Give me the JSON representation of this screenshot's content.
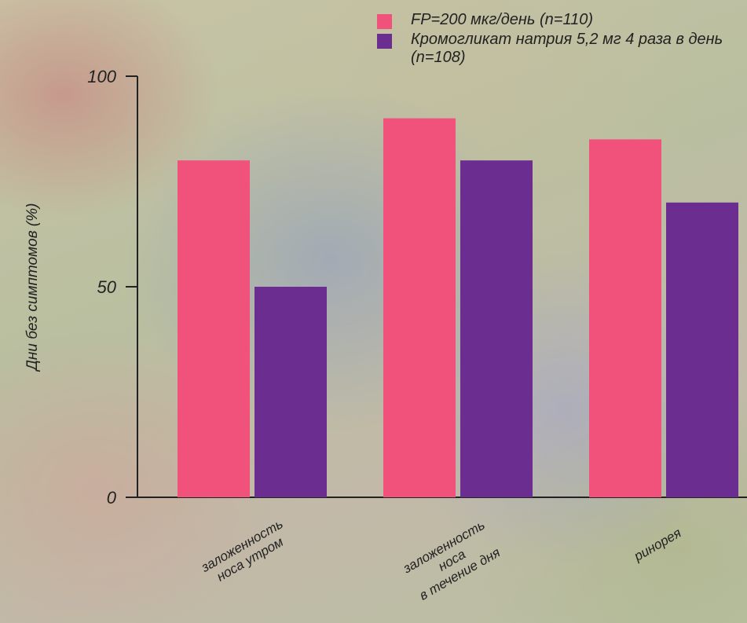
{
  "chart_data": {
    "type": "bar",
    "y_label": "Дни без симптомов (%)",
    "categories": [
      [
        "заложенность",
        "носа утром"
      ],
      [
        "заложенность",
        "носа",
        "в течение дня"
      ],
      [
        "ринорея"
      ]
    ],
    "series": [
      {
        "name": "FP=200 мкг/день (n=110)",
        "color": "#f0527c",
        "values": [
          80,
          90,
          85
        ]
      },
      {
        "name": "Кромогликат натрия 5,2 мг 4 раза в день (n=108)",
        "color": "#6b2d8f",
        "values": [
          50,
          80,
          70
        ]
      }
    ],
    "ylim": [
      0,
      100
    ],
    "yticks": [
      0,
      50,
      100
    ]
  }
}
